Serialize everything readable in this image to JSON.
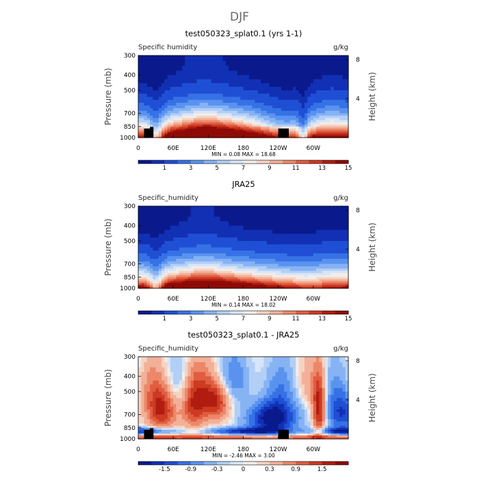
{
  "page_title": "DJF",
  "chart_data": [
    {
      "type": "heatmap",
      "title": "test050323_splat0.1 (yrs 1-1)",
      "variable_label": "Specific humidity",
      "units": "g/kg",
      "ylabel": "Pressure (mb)",
      "y2label": "Height (km)",
      "x_ticks": [
        "0",
        "60E",
        "120E",
        "180",
        "120W",
        "60W"
      ],
      "x_tick_lons": [
        0,
        60,
        120,
        180,
        240,
        300
      ],
      "xlim": [
        0,
        360
      ],
      "y_ticks": [
        "300",
        "400",
        "500",
        "700",
        "850",
        "1000"
      ],
      "y_tick_values": [
        300,
        400,
        500,
        700,
        850,
        1000
      ],
      "ylim": [
        300,
        1000
      ],
      "y2_ticks": [
        "8",
        "4"
      ],
      "y2_tick_values": [
        8,
        4
      ],
      "stats": "MIN =    0.08   MAX =   18.68",
      "colorbar_labels": [
        "1",
        "3",
        "5",
        "7",
        "9",
        "11",
        "13",
        "15"
      ],
      "colorbar_levels": [
        0.5,
        1,
        2,
        3,
        4,
        5,
        6,
        7,
        8,
        9,
        10,
        11,
        12,
        13,
        14,
        15,
        16
      ],
      "field": "model"
    },
    {
      "type": "heatmap",
      "title": "JRA25",
      "variable_label": "Specific_humidity",
      "units": "g/kg",
      "ylabel": "Pressure (mb)",
      "y2label": "Height (km)",
      "x_ticks": [
        "0",
        "60E",
        "120E",
        "180",
        "120W",
        "60W"
      ],
      "x_tick_lons": [
        0,
        60,
        120,
        180,
        240,
        300
      ],
      "xlim": [
        0,
        360
      ],
      "y_ticks": [
        "300",
        "400",
        "500",
        "700",
        "850",
        "1000"
      ],
      "y_tick_values": [
        300,
        400,
        500,
        700,
        850,
        1000
      ],
      "ylim": [
        300,
        1000
      ],
      "y2_ticks": [
        "8",
        "4"
      ],
      "y2_tick_values": [
        8,
        4
      ],
      "stats": "MIN =    0.14   MAX =   18.02",
      "colorbar_labels": [
        "1",
        "3",
        "5",
        "7",
        "9",
        "11",
        "13",
        "15"
      ],
      "colorbar_levels": [
        0.5,
        1,
        2,
        3,
        4,
        5,
        6,
        7,
        8,
        9,
        10,
        11,
        12,
        13,
        14,
        15,
        16
      ],
      "field": "obs"
    },
    {
      "type": "heatmap",
      "title": "test050323_splat0.1 - JRA25",
      "variable_label": "Specific_humidity",
      "units": "g/kg",
      "ylabel": "Pressure (mb)",
      "y2label": "Height (km)",
      "x_ticks": [
        "0",
        "60E",
        "120E",
        "180",
        "120W",
        "60W"
      ],
      "x_tick_lons": [
        0,
        60,
        120,
        180,
        240,
        300
      ],
      "xlim": [
        0,
        360
      ],
      "y_ticks": [
        "300",
        "400",
        "500",
        "700",
        "850",
        "1000"
      ],
      "y_tick_values": [
        300,
        400,
        500,
        700,
        850,
        1000
      ],
      "ylim": [
        300,
        1000
      ],
      "y2_ticks": [
        "8",
        "4"
      ],
      "y2_tick_values": [
        8,
        4
      ],
      "stats": "MIN =   -2.46   MAX =    3.00",
      "colorbar_labels": [
        "-1.5",
        "-0.9",
        "-0.3",
        "0",
        "0.3",
        "0.9",
        "1.5"
      ],
      "colorbar_levels": [
        -1.8,
        -1.5,
        -1.2,
        -0.9,
        -0.6,
        -0.3,
        -0.1,
        0,
        0.1,
        0.3,
        0.6,
        0.9,
        1.2,
        1.5,
        1.8
      ],
      "field": "diff"
    }
  ],
  "palette": [
    "#0a1a8c",
    "#1230b4",
    "#1f4fd4",
    "#3672e6",
    "#5a93ef",
    "#86b3f4",
    "#b2cff6",
    "#d7e5f7",
    "#f2ede9",
    "#f6d3c3",
    "#f3b098",
    "#ec8869",
    "#e05d41",
    "#cc3a22",
    "#b01d10",
    "#8e0b07"
  ]
}
